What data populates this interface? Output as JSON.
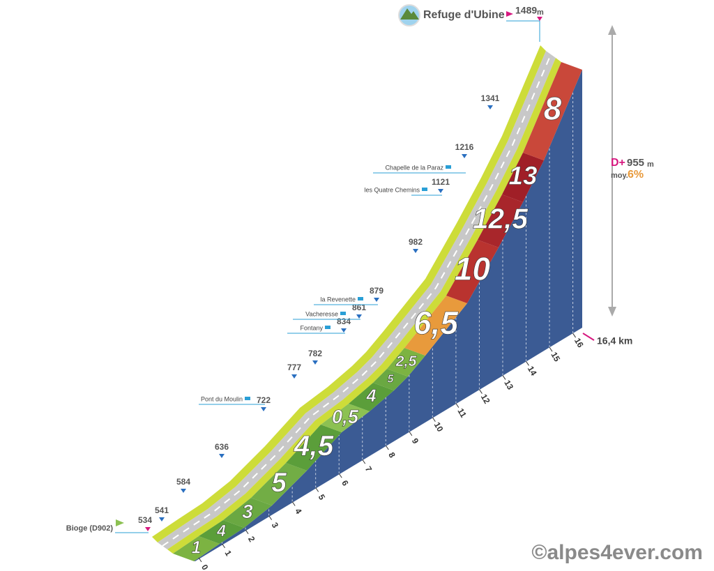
{
  "summit": {
    "name": "Refuge d'Ubine",
    "altitude": 1489,
    "unit": "m"
  },
  "start": {
    "name": "Bioge (D902)",
    "altitude": 534
  },
  "altitude_markers": [
    {
      "altitude": 541
    },
    {
      "altitude": 584
    },
    {
      "altitude": 636
    },
    {
      "altitude": 722,
      "place": "Pont du Moulin"
    },
    {
      "altitude": 777
    },
    {
      "altitude": 782
    },
    {
      "altitude": 834,
      "place": "Fontany"
    },
    {
      "altitude": 861,
      "place": "Vacheresse"
    },
    {
      "altitude": 879,
      "place": "la Revenette"
    },
    {
      "altitude": 982
    },
    {
      "altitude": 1121,
      "place": "les Quatre Chemins"
    },
    {
      "altitude": 1216,
      "place": "Chapelle de la Paraz"
    },
    {
      "altitude": 1341
    }
  ],
  "gradients": [
    {
      "label": "1",
      "color": "#7cb342"
    },
    {
      "label": "4",
      "color": "#5b9e3a"
    },
    {
      "label": "3",
      "color": "#6aa842"
    },
    {
      "label": "5",
      "color": "#72ad45"
    },
    {
      "label": "4,5",
      "color": "#5b9e3a"
    },
    {
      "label": "0,5",
      "color": "#8cc152"
    },
    {
      "label": "4",
      "color": "#5b9e3a"
    },
    {
      "label": "5",
      "color": "#6aa842"
    },
    {
      "label": "2,5",
      "color": "#7cb342"
    },
    {
      "label": "6,5",
      "color": "#e89a3c"
    },
    {
      "label": "10",
      "color": "#b9332f"
    },
    {
      "label": "12,5",
      "color": "#a8262b"
    },
    {
      "label": "13",
      "color": "#a01f27"
    },
    {
      "label": "8",
      "color": "#c9483a"
    }
  ],
  "km_ticks": [
    0,
    1,
    2,
    3,
    4,
    5,
    6,
    7,
    8,
    9,
    10,
    11,
    12,
    13,
    14,
    15,
    16
  ],
  "totals": {
    "d_plus_label": "D+",
    "d_plus": 955,
    "unit": "m",
    "average_label": "moy.",
    "average": "6%",
    "distance": "16,4 km"
  },
  "watermark": "©alpes4ever.com"
}
